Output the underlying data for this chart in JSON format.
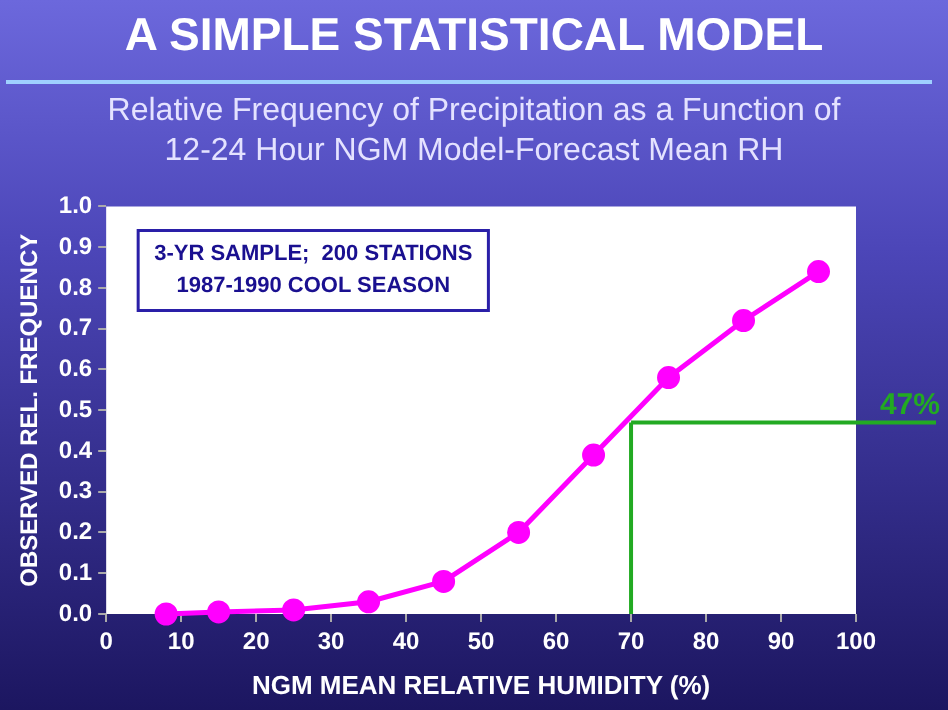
{
  "chart_data": {
    "type": "line",
    "title": "A SIMPLE STATISTICAL MODEL",
    "subtitle": "Relative Frequency of Precipitation as a Function of 12-24 Hour NGM Model-Forecast Mean RH",
    "xlabel": "NGM MEAN RELATIVE HUMIDITY (%)",
    "ylabel": "OBSERVED REL. FREQUENCY",
    "x": [
      8,
      15,
      25,
      35,
      45,
      55,
      65,
      75,
      85,
      95
    ],
    "series": [
      {
        "color": "#ff00ff",
        "values": [
          0.0,
          0.005,
          0.01,
          0.03,
          0.08,
          0.2,
          0.39,
          0.58,
          0.72,
          0.84
        ]
      }
    ],
    "xlim": [
      0,
      100
    ],
    "xticks": [
      0,
      10,
      20,
      30,
      40,
      50,
      60,
      70,
      80,
      90,
      100
    ],
    "ylim": [
      0,
      1
    ],
    "yticks": [
      {
        "value": 0,
        "label": "0.0"
      },
      {
        "value": 0.1,
        "label": "0.1"
      },
      {
        "value": 0.2,
        "label": "0.2"
      },
      {
        "value": 0.3,
        "label": "0.3"
      },
      {
        "value": 0.4,
        "label": "0.4"
      },
      {
        "value": 0.5,
        "label": "0.5"
      },
      {
        "value": 0.6,
        "label": "0.6"
      },
      {
        "value": 0.7,
        "label": "0.7"
      },
      {
        "value": 0.8,
        "label": "0.8"
      },
      {
        "value": 0.9,
        "label": "0.9"
      },
      {
        "value": 1,
        "label": "1.0"
      }
    ],
    "ref_lines": [
      {
        "axis": "x",
        "value": 70,
        "color": "#22aa22"
      },
      {
        "axis": "y",
        "value": 0.47,
        "label": "47%",
        "color": "#22aa22"
      }
    ],
    "annotations": [
      "3-YR SAMPLE;  200 STATIONS",
      "1987-1990 COOL SEASON"
    ],
    "marker": "circle",
    "line_style": "solid",
    "grid": false,
    "legend": false
  }
}
